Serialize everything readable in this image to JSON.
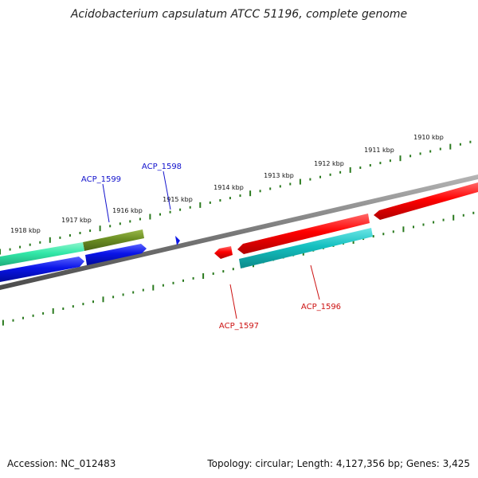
{
  "title": "Acidobacterium capsulatum ATCC 51196, complete genome",
  "footer": {
    "accession": "Accession: NC_012483",
    "summary": "Topology: circular; Length: 4,127,356 bp; Genes: 3,425"
  },
  "tick_labels": [
    "1910 kbp",
    "1911 kbp",
    "1912 kbp",
    "1913 kbp",
    "1914 kbp",
    "1915 kbp",
    "1916 kbp",
    "1917 kbp",
    "1918 kbp"
  ],
  "gene_labels": {
    "acp1599": "ACP_1599",
    "acp1598": "ACP_1598",
    "acp1597": "ACP_1597",
    "acp1596": "ACP_1596"
  },
  "colors": {
    "tick": "#2a7a1e",
    "backbone": "#7a7a7a",
    "red": "#ff0000",
    "cyan": "#19c4c4",
    "olive": "#6b8e23",
    "seagreen": "#33e8a8",
    "blue": "#0a14e8"
  }
}
